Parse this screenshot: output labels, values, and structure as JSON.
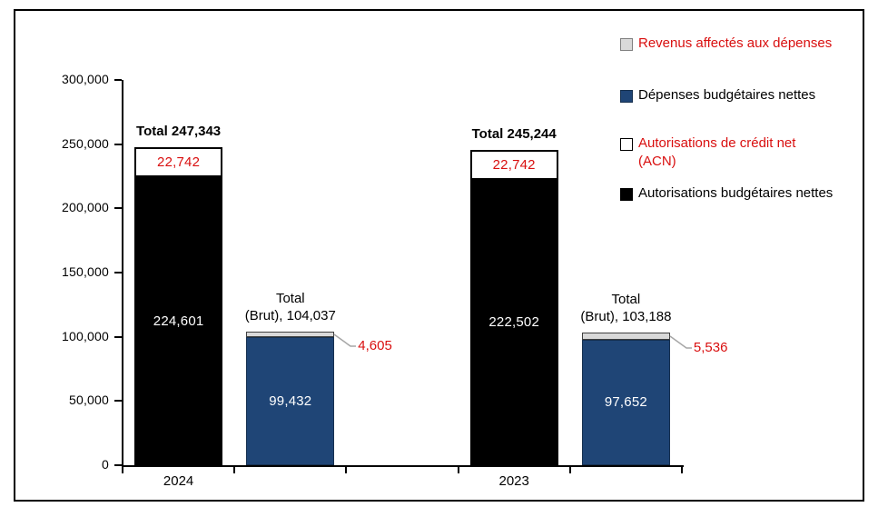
{
  "chart_data": {
    "type": "bar",
    "subtype": "grouped-stacked",
    "title": "",
    "y_axis": {
      "min": 0,
      "max": 300000,
      "step": 50000,
      "tick_labels": [
        "0",
        "50,000",
        "100,000",
        "150,000",
        "200,000",
        "250,000",
        "300,000"
      ],
      "grid": false
    },
    "x_axis": {
      "num_slots": 5,
      "group_labels": [
        {
          "text": "2024",
          "slot": 0
        },
        {
          "text": "2023",
          "slot": 3
        }
      ]
    },
    "colors": {
      "black_series": "#000000",
      "blue_series": "#1f4576",
      "gray_series": "#d9d9d9",
      "white_series": "#ffffff",
      "red_text": "#d90f0f",
      "callout_line": "#a6a6a6"
    },
    "bars": [
      {
        "year": "2024",
        "slot": 0,
        "segments": [
          {
            "series": "Autorisations budgétaires nettes",
            "value": 224601,
            "label": "224,601",
            "fill": "#000000",
            "label_color": "#ffffff",
            "border": "#000000"
          },
          {
            "series": "Autorisations de crédit net (ACN)",
            "value": 22742,
            "label": "22,742",
            "fill": "#ffffff",
            "label_color": "#d90f0f",
            "border": "#000000"
          }
        ],
        "total": {
          "lines": [
            "Total 247,343"
          ],
          "bold": true,
          "color": "#000000"
        }
      },
      {
        "year": "2024",
        "slot": 1,
        "segments": [
          {
            "series": "Dépenses budgétaires nettes",
            "value": 99432,
            "label": "99,432",
            "fill": "#1f4576",
            "label_color": "#ffffff",
            "border": "#16304f"
          },
          {
            "series": "Revenus affectés aux dépenses",
            "value": 4605,
            "label": "",
            "fill": "#d9d9d9",
            "label_color": "",
            "border": "#3f3f3f"
          }
        ],
        "total": {
          "lines": [
            "Total",
            "(Brut), 104,037"
          ],
          "bold": false,
          "color": "#000000"
        },
        "callout": {
          "label": "4,605",
          "color": "#d90f0f"
        }
      },
      {
        "year": "2023",
        "slot": 3,
        "segments": [
          {
            "series": "Autorisations budgétaires nettes",
            "value": 222502,
            "label": "222,502",
            "fill": "#000000",
            "label_color": "#ffffff",
            "border": "#000000"
          },
          {
            "series": "Autorisations de crédit net (ACN)",
            "value": 22742,
            "label": "22,742",
            "fill": "#ffffff",
            "label_color": "#d90f0f",
            "border": "#000000"
          }
        ],
        "total": {
          "lines": [
            "Total 245,244"
          ],
          "bold": true,
          "color": "#000000"
        }
      },
      {
        "year": "2023",
        "slot": 4,
        "segments": [
          {
            "series": "Dépenses budgétaires nettes",
            "value": 97652,
            "label": "97,652",
            "fill": "#1f4576",
            "label_color": "#ffffff",
            "border": "#16304f"
          },
          {
            "series": "Revenus affectés aux dépenses",
            "value": 5536,
            "label": "",
            "fill": "#d9d9d9",
            "label_color": "",
            "border": "#3f3f3f"
          }
        ],
        "total": {
          "lines": [
            "Total",
            "(Brut), 103,188"
          ],
          "bold": false,
          "color": "#000000"
        },
        "callout": {
          "label": "5,536",
          "color": "#d90f0f"
        }
      }
    ],
    "legend": {
      "position": "right",
      "items": [
        {
          "swatch_fill": "#d9d9d9",
          "swatch_border": "#808080",
          "lines": [
            "Revenus affectés aux dépenses"
          ],
          "text_color": "#d90f0f"
        },
        {
          "swatch_fill": "#1f4576",
          "swatch_border": "#16304f",
          "lines": [
            "Dépenses budgétaires nettes"
          ],
          "text_color": "#000000"
        },
        {
          "swatch_fill": "#ffffff",
          "swatch_border": "#000000",
          "lines": [
            "Autorisations de crédit net",
            "(ACN)"
          ],
          "text_color": "#d90f0f"
        },
        {
          "swatch_fill": "#000000",
          "swatch_border": "#000000",
          "lines": [
            "Autorisations budgétaires nettes"
          ],
          "text_color": "#000000"
        }
      ]
    }
  }
}
